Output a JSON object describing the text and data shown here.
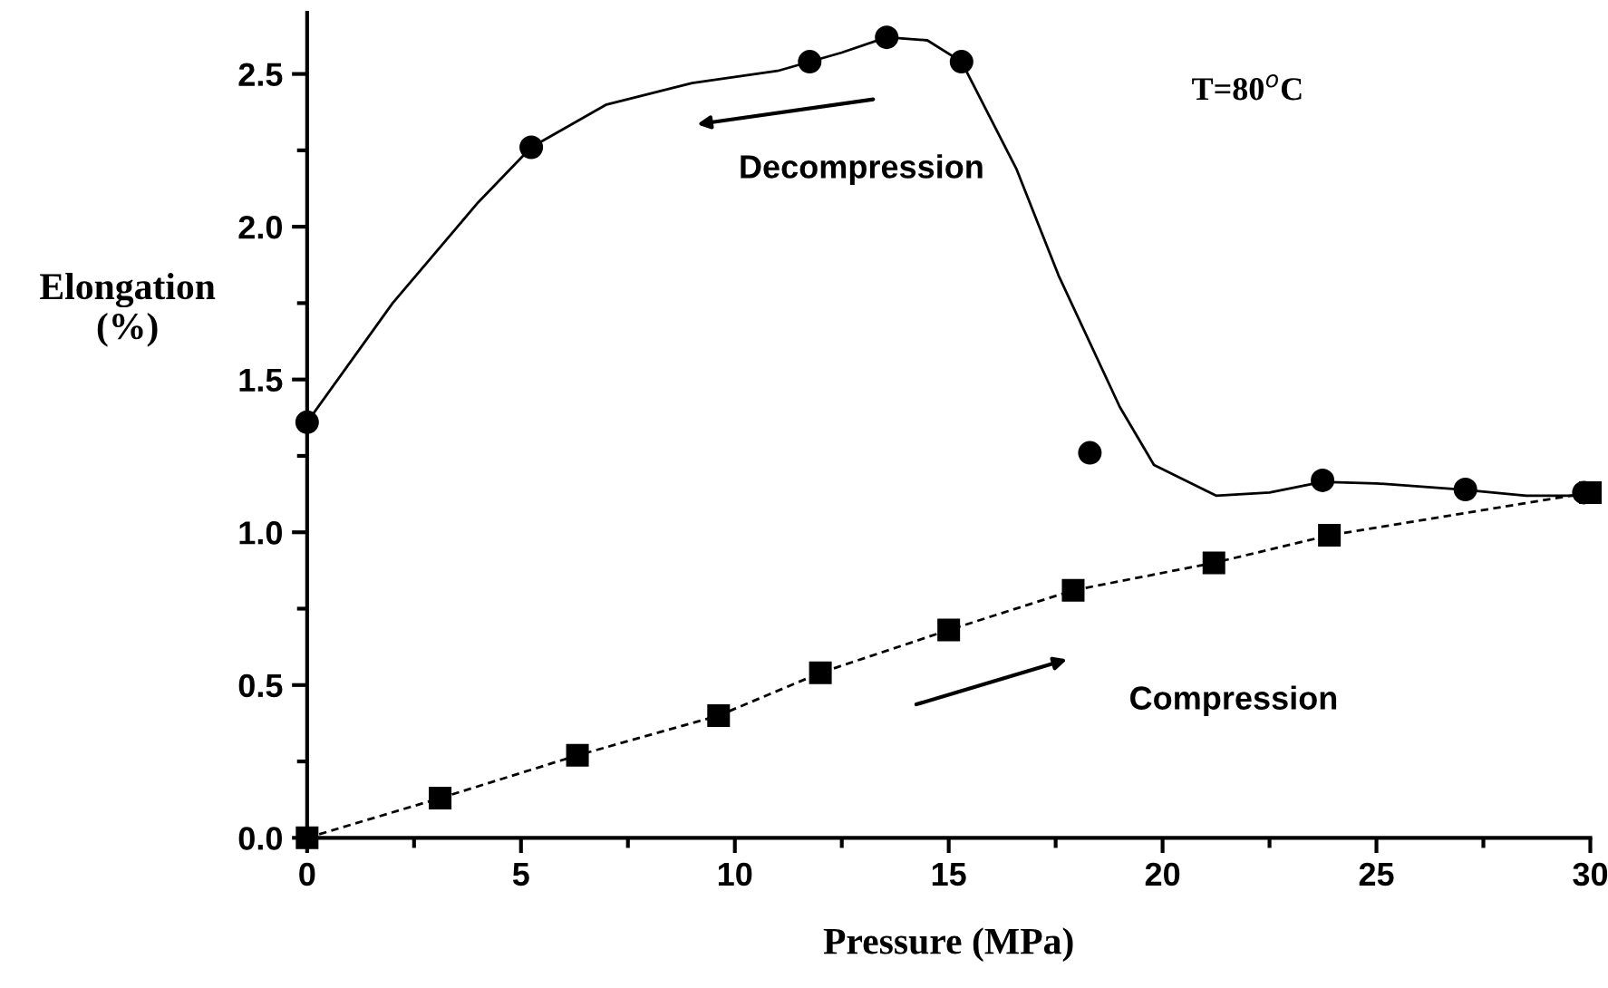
{
  "chart_data": {
    "type": "line",
    "xlabel": "Pressure (MPa)",
    "ylabel": "Elongation\n(%)",
    "xlim": [
      0,
      30
    ],
    "xticks": [
      0,
      5,
      10,
      15,
      20,
      25,
      30
    ],
    "ylim": [
      0,
      2.7
    ],
    "yticks": [
      {
        "value": 0,
        "label": "0.0"
      },
      0.5,
      {
        "value": 1,
        "label": "1.0"
      },
      1.5,
      {
        "value": 2,
        "label": "2.0"
      },
      2.5
    ],
    "grid": false,
    "legend": false,
    "annotations": [
      "Decompression",
      "Compression",
      "T=80$^{o}$C"
    ],
    "series": [
      {
        "type": "scatter",
        "color": "#000000",
        "marker": "circle",
        "x": [
          0,
          5.24,
          11.75,
          13.55,
          15.3,
          18.3,
          23.74,
          27.08,
          29.85
        ],
        "values": [
          1.36,
          2.26,
          2.54,
          2.62,
          2.54,
          1.26,
          1.17,
          1.14,
          1.13
        ]
      },
      {
        "color": "#000000",
        "marker": "none",
        "line_style": "solid",
        "x": [
          0,
          2,
          4,
          5.24,
          7,
          9,
          11,
          12.5,
          13.55,
          14.5,
          15.3,
          16.58,
          17.57,
          19.0,
          19.8,
          21.25,
          22.5,
          23.74,
          25,
          27,
          28.5,
          30
        ],
        "values": [
          1.36,
          1.75,
          2.08,
          2.26,
          2.4,
          2.47,
          2.51,
          2.57,
          2.62,
          2.61,
          2.54,
          2.19,
          1.84,
          1.41,
          1.22,
          1.12,
          1.13,
          1.165,
          1.16,
          1.14,
          1.12,
          1.12
        ]
      },
      {
        "color": "#000000",
        "marker": "square",
        "line_style": "dashed",
        "x": [
          0,
          3.11,
          6.32,
          9.62,
          12.0,
          15.0,
          17.91,
          21.2,
          23.9,
          30
        ],
        "values": [
          0.0,
          0.13,
          0.27,
          0.4,
          0.54,
          0.68,
          0.81,
          0.9,
          0.99,
          1.13
        ]
      }
    ]
  }
}
